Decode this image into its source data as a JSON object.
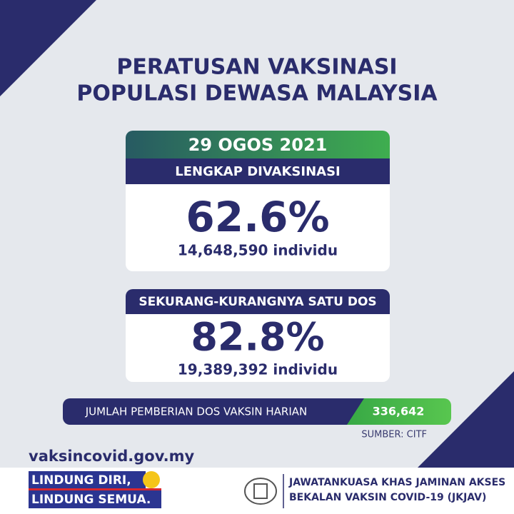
{
  "title": {
    "line1": "PERATUSAN VAKSINASI",
    "line2": "POPULASI DEWASA MALAYSIA"
  },
  "date": "29 OGOS 2021",
  "cards": [
    {
      "header": "LENGKAP DIVAKSINASI",
      "percent": "62.6%",
      "count": "14,648,590 individu"
    },
    {
      "header": "SEKURANG-KURANGNYA SATU DOS",
      "percent": "82.8%",
      "count": "19,389,392 individu"
    }
  ],
  "daily": {
    "label": "JUMLAH PEMBERIAN DOS VAKSIN HARIAN",
    "value": "336,642"
  },
  "source": "SUMBER: CITF",
  "website": "vaksincovid.gov.my",
  "slogan": {
    "line1": "LINDUNG DIRI,",
    "line2": "LINDUNG SEMUA."
  },
  "agency": {
    "line1": "JAWATANKUASA KHAS JAMINAN AKSES",
    "line2": "BEKALAN VAKSIN COVID-19 (JKJAV)"
  }
}
